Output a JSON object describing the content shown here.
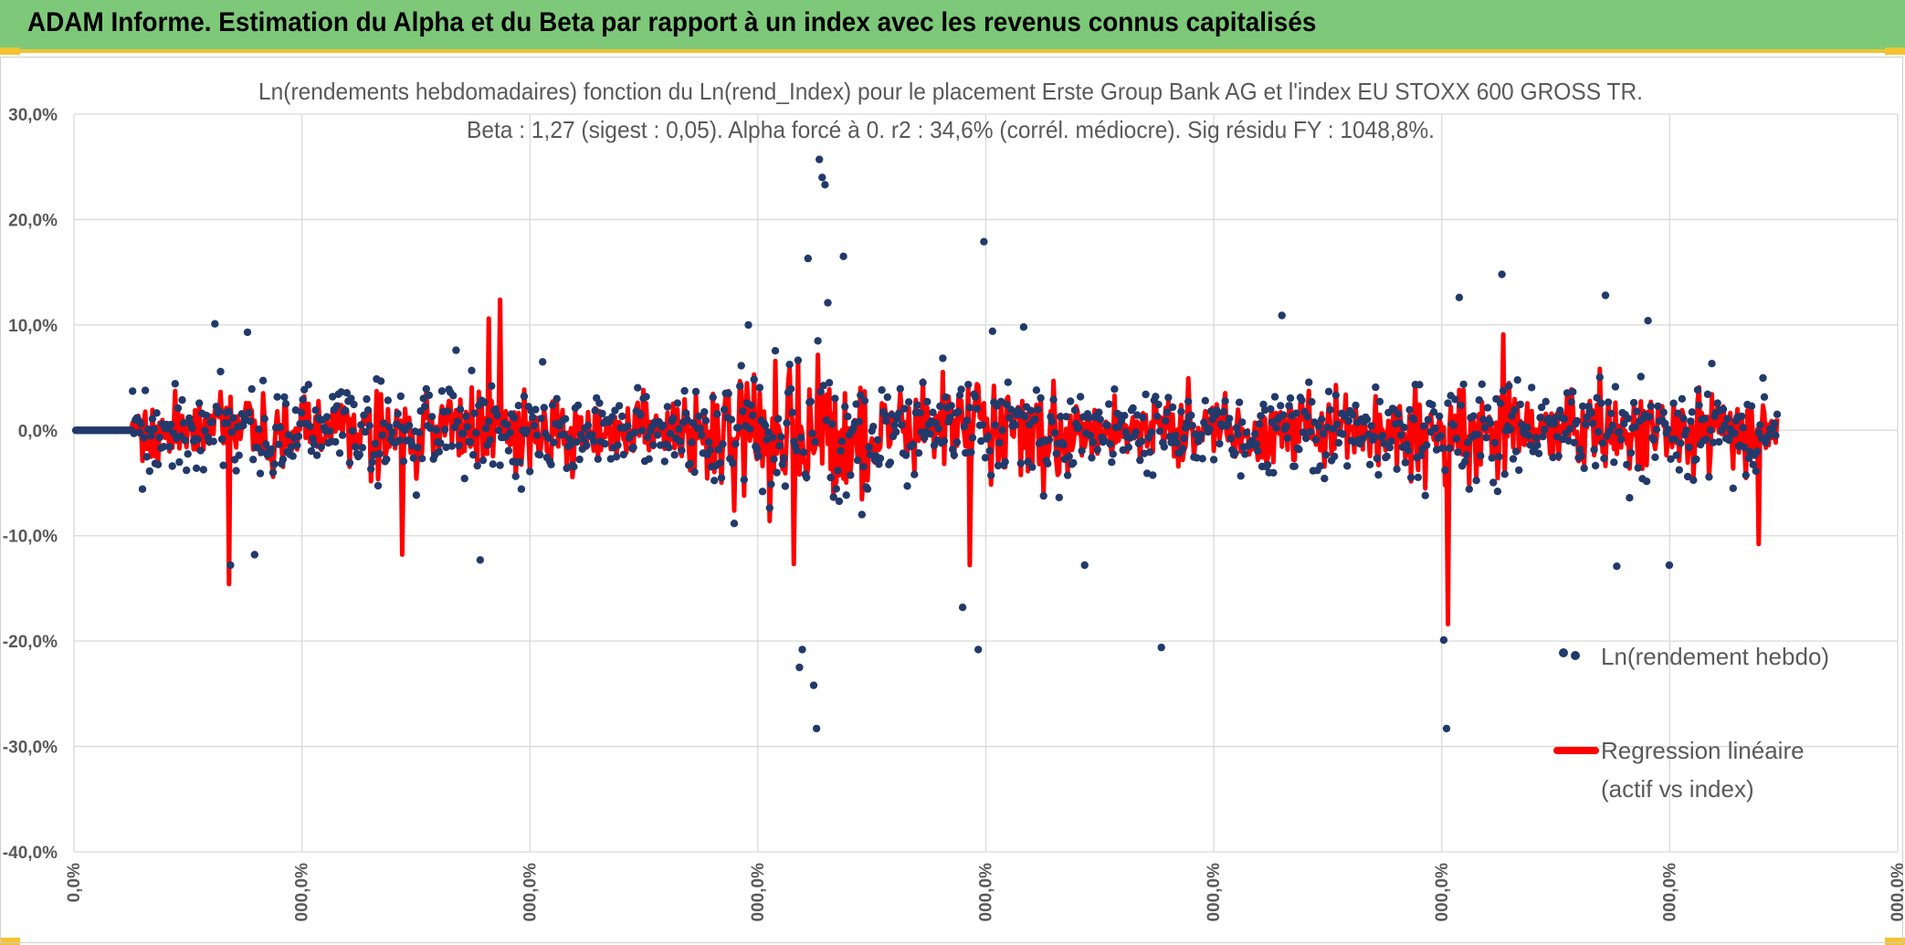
{
  "header": {
    "title": "ADAM Informe. Estimation du Alpha et du Beta par rapport à un index avec les revenus connus capitalisés"
  },
  "colors": {
    "banner": "#7ec87a",
    "accent": "#f2c230",
    "points": "#223a6b",
    "regression": "#ff0000"
  },
  "chart_data": {
    "type": "scatter",
    "title": "Ln(rendements hebdomadaires) fonction du Ln(rend_Index) pour le placement Erste Group Bank AG et l'index EU STOXX 600 GROSS TR.",
    "subtitle": "Beta : 1,27 (sigest : 0,05). Alpha forcé à 0. r2 : 34,6% (corrél. médiocre). Sig résidu FY : 1048,8%.",
    "y_ticks": [
      "30,0%",
      "20,0%",
      "10,0%",
      "0,0%",
      "-10,0%",
      "-20,0%",
      "-30,0%",
      "-40,0%"
    ],
    "x_ticks": [
      "0,0%",
      "000,0%",
      "000,0%",
      "000,0%",
      "000,0%",
      "000,0%",
      "000,0%",
      "000,0%",
      "000,0%"
    ],
    "ylim": [
      -40,
      30
    ],
    "grid": true,
    "legend_position": "right",
    "series": [
      {
        "name": "Ln(rendement hebdo)",
        "kind": "scatter"
      },
      {
        "name": "Regression linéaire (actif vs index)",
        "kind": "line"
      }
    ],
    "legend_lines": {
      "points": "Ln(rendement hebdo)",
      "regression_line1": "Regression linéaire",
      "regression_line2": "(actif vs index)"
    },
    "point_count": 1200,
    "flat_segment_count": 40,
    "outliers": [
      {
        "i": 98,
        "y": 10.1
      },
      {
        "i": 109,
        "y": -12.8
      },
      {
        "i": 121,
        "y": 9.3
      },
      {
        "i": 126,
        "y": -11.8
      },
      {
        "i": 268,
        "y": 7.6
      },
      {
        "i": 285,
        "y": -12.3
      },
      {
        "i": 329,
        "y": 6.5
      },
      {
        "i": 474,
        "y": 10.0
      },
      {
        "i": 510,
        "y": -22.5
      },
      {
        "i": 512,
        "y": -20.8
      },
      {
        "i": 516,
        "y": 16.3
      },
      {
        "i": 520,
        "y": -24.2
      },
      {
        "i": 522,
        "y": -28.3
      },
      {
        "i": 524,
        "y": 25.7
      },
      {
        "i": 526,
        "y": 24.0
      },
      {
        "i": 528,
        "y": 23.3
      },
      {
        "i": 530,
        "y": 12.1
      },
      {
        "i": 541,
        "y": 16.5
      },
      {
        "i": 625,
        "y": -16.8
      },
      {
        "i": 636,
        "y": -20.8
      },
      {
        "i": 640,
        "y": 17.9
      },
      {
        "i": 646,
        "y": 9.4
      },
      {
        "i": 668,
        "y": 9.8
      },
      {
        "i": 711,
        "y": -12.8
      },
      {
        "i": 765,
        "y": -20.6
      },
      {
        "i": 850,
        "y": 10.9
      },
      {
        "i": 964,
        "y": -19.9
      },
      {
        "i": 966,
        "y": -28.3
      },
      {
        "i": 975,
        "y": 12.6
      },
      {
        "i": 1005,
        "y": 14.8
      },
      {
        "i": 1078,
        "y": 12.8
      },
      {
        "i": 1086,
        "y": -12.9
      },
      {
        "i": 1108,
        "y": 10.4
      },
      {
        "i": 1123,
        "y": -12.8
      }
    ],
    "regression_spikes": [
      {
        "i": 108,
        "y": -14.6
      },
      {
        "i": 230,
        "y": -11.8
      },
      {
        "i": 291,
        "y": 10.6
      },
      {
        "i": 299,
        "y": 12.4
      },
      {
        "i": 506,
        "y": -12.7
      },
      {
        "i": 630,
        "y": -12.8
      },
      {
        "i": 967,
        "y": -18.4
      },
      {
        "i": 1006,
        "y": 9.1
      },
      {
        "i": 1186,
        "y": -10.8
      }
    ]
  }
}
